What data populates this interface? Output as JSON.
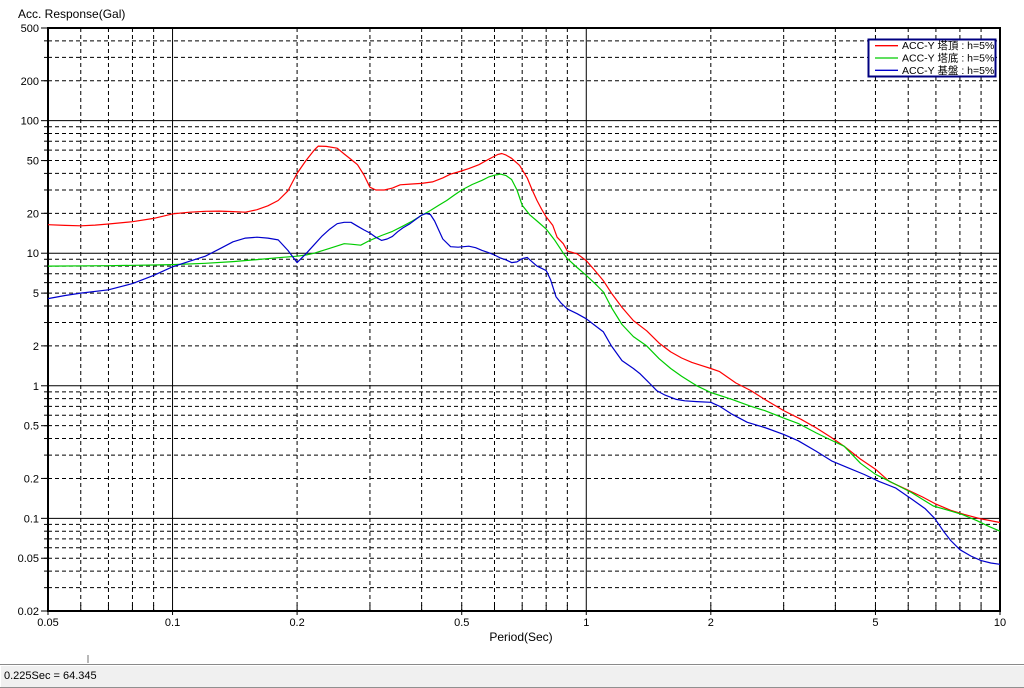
{
  "window": {
    "background": "#ffffff",
    "frame_color": "#909090"
  },
  "status_bar": {
    "text": "0.225Sec = 64.345",
    "background": "#f0f0f0"
  },
  "chart_data": {
    "type": "line",
    "xlabel": "Period(Sec)",
    "ylabel": "Acc. Response(Gal)",
    "x_scale": "log",
    "y_scale": "log",
    "xlim": [
      0.05,
      10
    ],
    "ylim": [
      0.02,
      500
    ],
    "grid": "log grid: solid lines at powers of 10, dashed minor lines at 2-9 multiples",
    "x_tick_values": [
      0.05,
      0.1,
      0.2,
      0.5,
      1,
      2,
      5,
      10
    ],
    "x_tick_labels": [
      "0.05",
      "0.1",
      "0.2",
      "0.5",
      "1",
      "2",
      "5",
      "10"
    ],
    "y_tick_values": [
      500,
      200,
      100,
      50,
      20,
      10,
      5,
      2,
      1,
      0.5,
      0.2,
      0.1,
      0.05,
      0.02
    ],
    "y_tick_labels": [
      "500",
      "200",
      "100",
      "50",
      "20",
      "10",
      "5",
      "2",
      "1",
      "0.5",
      "0.2",
      "0.1",
      "0.05",
      "0.02"
    ],
    "solid_x_gridlines": [
      0.1,
      1
    ],
    "solid_y_gridlines": [
      100,
      10,
      1,
      0.1
    ],
    "legend": {
      "position": "top-right",
      "border_color": "#000080",
      "background": "#ffffff"
    },
    "series": [
      {
        "name": "ACC-Y 塔頂 : h=5%",
        "color": "#ff0000",
        "points": [
          [
            0.05,
            16.4
          ],
          [
            0.055,
            16.2
          ],
          [
            0.06,
            16.1
          ],
          [
            0.065,
            16.3
          ],
          [
            0.07,
            16.6
          ],
          [
            0.08,
            17.3
          ],
          [
            0.09,
            18.3
          ],
          [
            0.1,
            19.8
          ],
          [
            0.11,
            20.4
          ],
          [
            0.12,
            20.7
          ],
          [
            0.13,
            20.8
          ],
          [
            0.14,
            20.6
          ],
          [
            0.15,
            20.4
          ],
          [
            0.16,
            21.3
          ],
          [
            0.17,
            22.8
          ],
          [
            0.18,
            25.0
          ],
          [
            0.19,
            29.5
          ],
          [
            0.2,
            40
          ],
          [
            0.21,
            50
          ],
          [
            0.22,
            60
          ],
          [
            0.225,
            64.3
          ],
          [
            0.235,
            64.0
          ],
          [
            0.25,
            62
          ],
          [
            0.26,
            56
          ],
          [
            0.27,
            51
          ],
          [
            0.28,
            46.5
          ],
          [
            0.29,
            39
          ],
          [
            0.3,
            31.5
          ],
          [
            0.31,
            30
          ],
          [
            0.325,
            30
          ],
          [
            0.34,
            31
          ],
          [
            0.355,
            32.8
          ],
          [
            0.375,
            33.2
          ],
          [
            0.4,
            33.6
          ],
          [
            0.425,
            34.5
          ],
          [
            0.45,
            37
          ],
          [
            0.47,
            39.5
          ],
          [
            0.49,
            41
          ],
          [
            0.52,
            43.5
          ],
          [
            0.55,
            46.5
          ],
          [
            0.58,
            51
          ],
          [
            0.61,
            55.5
          ],
          [
            0.625,
            56.5
          ],
          [
            0.64,
            55
          ],
          [
            0.66,
            52
          ],
          [
            0.69,
            46
          ],
          [
            0.72,
            37
          ],
          [
            0.74,
            30
          ],
          [
            0.76,
            25
          ],
          [
            0.78,
            21.5
          ],
          [
            0.8,
            18.8
          ],
          [
            0.83,
            16.2
          ],
          [
            0.85,
            13.2
          ],
          [
            0.88,
            11.8
          ],
          [
            0.9,
            10.4
          ],
          [
            0.95,
            9.9
          ],
          [
            1.0,
            8.8
          ],
          [
            1.05,
            7.4
          ],
          [
            1.1,
            6.2
          ],
          [
            1.15,
            5.0
          ],
          [
            1.22,
            3.9
          ],
          [
            1.3,
            3.1
          ],
          [
            1.4,
            2.6
          ],
          [
            1.5,
            2.1
          ],
          [
            1.6,
            1.8
          ],
          [
            1.7,
            1.62
          ],
          [
            1.8,
            1.5
          ],
          [
            1.9,
            1.42
          ],
          [
            2.0,
            1.35
          ],
          [
            2.1,
            1.28
          ],
          [
            2.3,
            1.05
          ],
          [
            2.5,
            0.92
          ],
          [
            2.7,
            0.79
          ],
          [
            3.0,
            0.65
          ],
          [
            3.3,
            0.56
          ],
          [
            3.6,
            0.48
          ],
          [
            3.9,
            0.41
          ],
          [
            4.2,
            0.35
          ],
          [
            4.6,
            0.28
          ],
          [
            5.0,
            0.235
          ],
          [
            5.4,
            0.19
          ],
          [
            6.0,
            0.163
          ],
          [
            6.5,
            0.145
          ],
          [
            7.0,
            0.128
          ],
          [
            7.6,
            0.115
          ],
          [
            8.2,
            0.107
          ],
          [
            9.0,
            0.099
          ],
          [
            10.0,
            0.093
          ]
        ]
      },
      {
        "name": "ACC-Y 塔底 : h=5%",
        "color": "#00cc00",
        "points": [
          [
            0.05,
            8.0
          ],
          [
            0.07,
            8.05
          ],
          [
            0.09,
            8.15
          ],
          [
            0.1,
            8.2
          ],
          [
            0.12,
            8.4
          ],
          [
            0.14,
            8.65
          ],
          [
            0.16,
            8.95
          ],
          [
            0.18,
            9.25
          ],
          [
            0.2,
            9.5
          ],
          [
            0.21,
            9.7
          ],
          [
            0.22,
            10.0
          ],
          [
            0.24,
            10.9
          ],
          [
            0.26,
            11.8
          ],
          [
            0.27,
            11.7
          ],
          [
            0.285,
            11.5
          ],
          [
            0.3,
            12.5
          ],
          [
            0.32,
            13.6
          ],
          [
            0.34,
            14.6
          ],
          [
            0.36,
            16.0
          ],
          [
            0.38,
            17.5
          ],
          [
            0.4,
            19.3
          ],
          [
            0.42,
            21.0
          ],
          [
            0.44,
            23.0
          ],
          [
            0.46,
            25.0
          ],
          [
            0.48,
            27.5
          ],
          [
            0.5,
            30.0
          ],
          [
            0.53,
            33.0
          ],
          [
            0.56,
            35.5
          ],
          [
            0.58,
            37.5
          ],
          [
            0.6,
            38.8
          ],
          [
            0.62,
            39.5
          ],
          [
            0.64,
            38.5
          ],
          [
            0.66,
            36.0
          ],
          [
            0.68,
            30.0
          ],
          [
            0.7,
            23.0
          ],
          [
            0.73,
            19.5
          ],
          [
            0.76,
            17.5
          ],
          [
            0.8,
            15.2
          ],
          [
            0.84,
            12.5
          ],
          [
            0.88,
            10.0
          ],
          [
            0.9,
            9.1
          ],
          [
            0.95,
            7.8
          ],
          [
            1.0,
            6.8
          ],
          [
            1.05,
            5.9
          ],
          [
            1.1,
            5.1
          ],
          [
            1.15,
            3.9
          ],
          [
            1.22,
            2.9
          ],
          [
            1.3,
            2.35
          ],
          [
            1.4,
            2.0
          ],
          [
            1.5,
            1.6
          ],
          [
            1.6,
            1.35
          ],
          [
            1.7,
            1.18
          ],
          [
            1.85,
            1.0
          ],
          [
            2.0,
            0.89
          ],
          [
            2.25,
            0.79
          ],
          [
            2.5,
            0.7
          ],
          [
            2.7,
            0.65
          ],
          [
            3.0,
            0.57
          ],
          [
            3.25,
            0.52
          ],
          [
            3.6,
            0.44
          ],
          [
            3.9,
            0.39
          ],
          [
            4.2,
            0.35
          ],
          [
            4.6,
            0.26
          ],
          [
            5.0,
            0.215
          ],
          [
            5.5,
            0.185
          ],
          [
            6.1,
            0.157
          ],
          [
            6.9,
            0.124
          ],
          [
            7.5,
            0.115
          ],
          [
            8.1,
            0.107
          ],
          [
            8.8,
            0.096
          ],
          [
            9.4,
            0.087
          ],
          [
            10.0,
            0.08
          ]
        ]
      },
      {
        "name": "ACC-Y 基盤 : h=5%",
        "color": "#0000cc",
        "points": [
          [
            0.05,
            4.55
          ],
          [
            0.055,
            4.8
          ],
          [
            0.06,
            5.0
          ],
          [
            0.07,
            5.3
          ],
          [
            0.08,
            5.9
          ],
          [
            0.09,
            6.8
          ],
          [
            0.1,
            7.9
          ],
          [
            0.11,
            8.7
          ],
          [
            0.12,
            9.5
          ],
          [
            0.13,
            10.8
          ],
          [
            0.14,
            12.2
          ],
          [
            0.15,
            13.0
          ],
          [
            0.16,
            13.2
          ],
          [
            0.17,
            13.0
          ],
          [
            0.18,
            12.6
          ],
          [
            0.19,
            10.5
          ],
          [
            0.2,
            8.5
          ],
          [
            0.21,
            9.9
          ],
          [
            0.22,
            11.6
          ],
          [
            0.23,
            13.5
          ],
          [
            0.24,
            15.2
          ],
          [
            0.25,
            16.7
          ],
          [
            0.26,
            17.1
          ],
          [
            0.27,
            17.1
          ],
          [
            0.28,
            16.0
          ],
          [
            0.29,
            15.0
          ],
          [
            0.3,
            14.2
          ],
          [
            0.31,
            13.2
          ],
          [
            0.32,
            12.5
          ],
          [
            0.33,
            12.8
          ],
          [
            0.34,
            13.4
          ],
          [
            0.35,
            14.5
          ],
          [
            0.36,
            15.5
          ],
          [
            0.375,
            16.7
          ],
          [
            0.39,
            18.3
          ],
          [
            0.4,
            19.4
          ],
          [
            0.41,
            19.9
          ],
          [
            0.42,
            19.6
          ],
          [
            0.43,
            17.5
          ],
          [
            0.44,
            14.9
          ],
          [
            0.45,
            12.8
          ],
          [
            0.47,
            11.2
          ],
          [
            0.49,
            11.1
          ],
          [
            0.52,
            11.3
          ],
          [
            0.54,
            11.0
          ],
          [
            0.56,
            10.5
          ],
          [
            0.58,
            10.1
          ],
          [
            0.6,
            9.7
          ],
          [
            0.62,
            9.2
          ],
          [
            0.64,
            8.9
          ],
          [
            0.66,
            8.5
          ],
          [
            0.68,
            8.6
          ],
          [
            0.7,
            9.1
          ],
          [
            0.72,
            9.3
          ],
          [
            0.74,
            8.6
          ],
          [
            0.76,
            8.0
          ],
          [
            0.78,
            7.7
          ],
          [
            0.8,
            7.4
          ],
          [
            0.82,
            6.3
          ],
          [
            0.845,
            4.7
          ],
          [
            0.87,
            4.2
          ],
          [
            0.9,
            3.8
          ],
          [
            0.95,
            3.5
          ],
          [
            1.0,
            3.2
          ],
          [
            1.05,
            2.85
          ],
          [
            1.1,
            2.55
          ],
          [
            1.15,
            2.0
          ],
          [
            1.22,
            1.55
          ],
          [
            1.3,
            1.35
          ],
          [
            1.35,
            1.23
          ],
          [
            1.42,
            1.05
          ],
          [
            1.48,
            0.92
          ],
          [
            1.55,
            0.85
          ],
          [
            1.65,
            0.79
          ],
          [
            1.73,
            0.77
          ],
          [
            1.85,
            0.76
          ],
          [
            2.0,
            0.75
          ],
          [
            2.1,
            0.7
          ],
          [
            2.25,
            0.61
          ],
          [
            2.45,
            0.53
          ],
          [
            2.72,
            0.48
          ],
          [
            3.0,
            0.43
          ],
          [
            3.25,
            0.385
          ],
          [
            3.6,
            0.32
          ],
          [
            3.93,
            0.27
          ],
          [
            4.3,
            0.24
          ],
          [
            4.7,
            0.214
          ],
          [
            5.1,
            0.19
          ],
          [
            5.6,
            0.169
          ],
          [
            6.13,
            0.139
          ],
          [
            6.6,
            0.118
          ],
          [
            6.95,
            0.1
          ],
          [
            7.3,
            0.08
          ],
          [
            7.6,
            0.068
          ],
          [
            8.0,
            0.058
          ],
          [
            8.5,
            0.052
          ],
          [
            9.0,
            0.048
          ],
          [
            9.5,
            0.046
          ],
          [
            10.0,
            0.045
          ]
        ]
      }
    ]
  }
}
